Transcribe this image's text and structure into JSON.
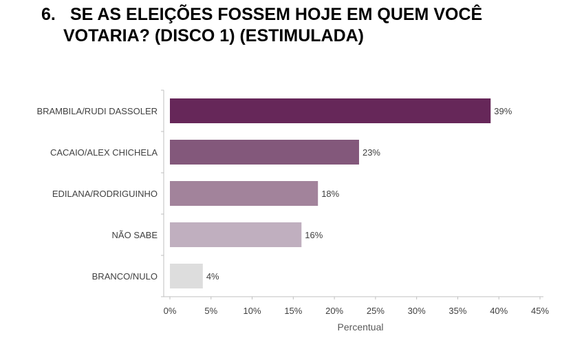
{
  "title": {
    "number": "6.",
    "line1": "SE AS ELEIÇÕES FOSSEM HOJE EM QUEM VOCÊ",
    "line2": "VOTARIA? (DISCO 1) (ESTIMULADA)"
  },
  "chart_data": {
    "type": "bar",
    "orientation": "horizontal",
    "categories": [
      "BRAMBILA/RUDI DASSOLER",
      "CACAIO/ALEX CHICHELA",
      "EDILANA/RODRIGUINHO",
      "NÃO SABE",
      "BRANCO/NULO"
    ],
    "values": [
      39,
      23,
      18,
      16,
      4
    ],
    "value_labels": [
      "39%",
      "23%",
      "18%",
      "16%",
      "4%"
    ],
    "bar_colors": [
      "#662759",
      "#83587b",
      "#a2839b",
      "#c0afbf",
      "#dddddd"
    ],
    "xlabel": "Percentual",
    "ylabel": "",
    "xlim": [
      0,
      45
    ],
    "x_ticks": [
      0,
      5,
      10,
      15,
      20,
      25,
      30,
      35,
      40,
      45
    ],
    "x_tick_labels": [
      "0%",
      "5%",
      "10%",
      "15%",
      "20%",
      "25%",
      "30%",
      "35%",
      "40%",
      "45%"
    ],
    "grid": false,
    "legend": "none"
  }
}
